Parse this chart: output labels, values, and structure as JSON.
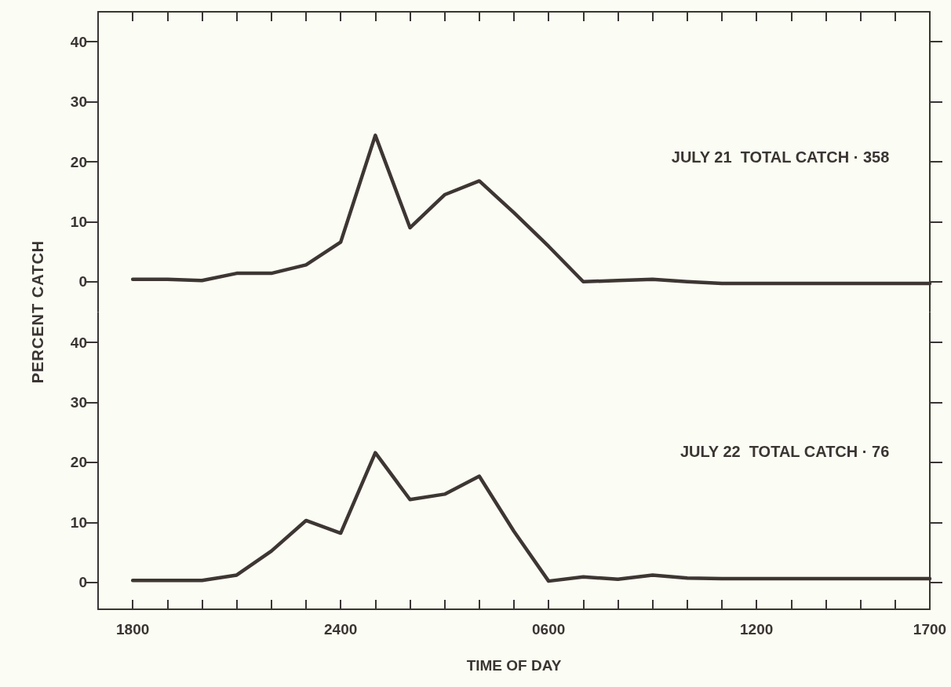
{
  "chart_data": [
    {
      "type": "line",
      "ylabel": "PERCENT CATCH",
      "annotations": [
        "JULY 21  TOTAL CATCH · 358"
      ],
      "categories": [
        null,
        "1800",
        null,
        null,
        null,
        null,
        null,
        "2400",
        null,
        null,
        null,
        null,
        null,
        "0600",
        null,
        null,
        null,
        null,
        null,
        "1200",
        null,
        null,
        null,
        null,
        "1700"
      ],
      "series": [
        {
          "color": "#3d3633",
          "values": [
            null,
            0.4,
            0.4,
            0.2,
            1.4,
            1.4,
            2.8,
            6.6,
            24.4,
            9.0,
            14.5,
            16.8,
            11.5,
            5.9,
            0,
            0.2,
            0.4,
            0,
            -0.3,
            -0.3,
            -0.3,
            -0.3,
            -0.3,
            -0.3,
            -0.3
          ]
        }
      ],
      "ylim": [
        -5,
        45
      ],
      "yticks": [
        0,
        10,
        20,
        30,
        40
      ],
      "tick_labels": "y",
      "grid": false
    },
    {
      "type": "line",
      "xlabel": "TIME OF DAY",
      "annotations": [
        "JULY 22  TOTAL CATCH · 76"
      ],
      "categories": [
        null,
        "1800",
        null,
        null,
        null,
        null,
        null,
        "2400",
        null,
        null,
        null,
        null,
        null,
        "0600",
        null,
        null,
        null,
        null,
        null,
        "1200",
        null,
        null,
        null,
        null,
        "1700"
      ],
      "series": [
        {
          "color": "#3d3633",
          "values": [
            null,
            0.3,
            0.3,
            0.3,
            1.2,
            5.2,
            10.3,
            8.2,
            21.6,
            13.8,
            14.7,
            17.7,
            8.5,
            0.2,
            0.9,
            0.5,
            1.2,
            0.7,
            0.6,
            0.6,
            0.6,
            0.6,
            0.6,
            0.6,
            0.6
          ]
        }
      ],
      "ylim": [
        -4.5,
        45
      ],
      "yticks": [
        0,
        10,
        20,
        30,
        40
      ],
      "grid": false
    }
  ]
}
